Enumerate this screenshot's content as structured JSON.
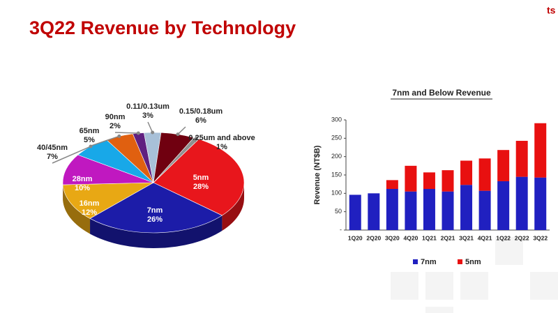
{
  "title": "3Q22 Revenue by Technology",
  "chart_data": [
    {
      "type": "pie",
      "categories": [
        "5nm",
        "7nm",
        "16nm",
        "28nm",
        "40/45nm",
        "65nm",
        "90nm",
        "0.11/0.13um",
        "0.15/0.18um",
        "0.25um and above"
      ],
      "values": [
        28,
        26,
        12,
        10,
        7,
        5,
        2,
        3,
        6,
        1
      ],
      "value_labels": [
        "28%",
        "26%",
        "12%",
        "10%",
        "7%",
        "5%",
        "2%",
        "3%",
        "6%",
        "1%"
      ],
      "colors": [
        "#e8161c",
        "#1c1ca8",
        "#e8a814",
        "#c018c0",
        "#18a8e8",
        "#e06010",
        "#602080",
        "#a8c0d8",
        "#700010",
        "#909090"
      ]
    },
    {
      "type": "bar",
      "title": "7nm and Below Revenue",
      "y_label": "Revenue (NT$B)",
      "stacked": true,
      "categories": [
        "1Q20",
        "2Q20",
        "3Q20",
        "4Q20",
        "1Q21",
        "2Q21",
        "3Q21",
        "4Q21",
        "1Q22",
        "2Q22",
        "3Q22"
      ],
      "series": [
        {
          "name": "7nm",
          "color": "#2020c0",
          "values": [
            96,
            100,
            112,
            105,
            112,
            105,
            123,
            107,
            133,
            145,
            143
          ]
        },
        {
          "name": "5nm",
          "color": "#e81010",
          "values": [
            0,
            0,
            24,
            70,
            45,
            58,
            66,
            88,
            85,
            98,
            148
          ]
        }
      ],
      "ylim": [
        0,
        300
      ],
      "yticks": [
        {
          "value": 0,
          "label": "-"
        },
        50,
        100,
        150,
        200,
        250,
        300
      ],
      "grid": false
    }
  ]
}
